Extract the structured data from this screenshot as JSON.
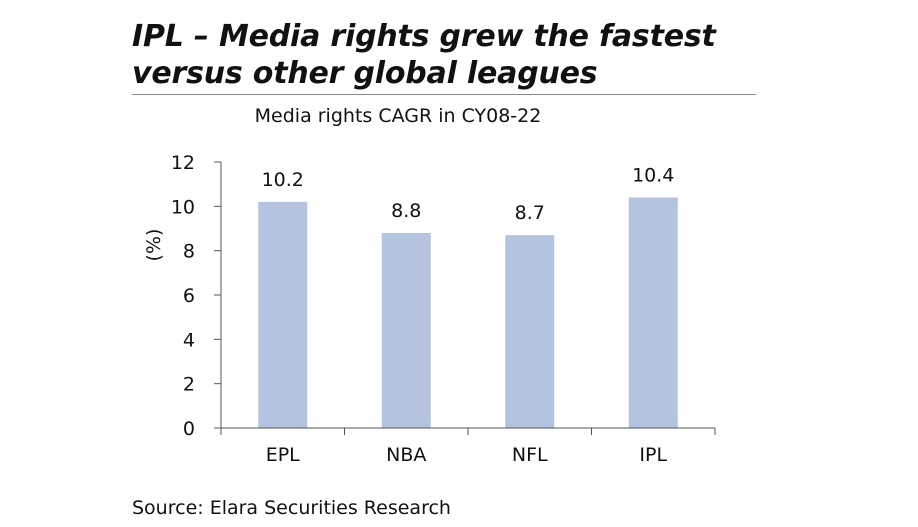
{
  "header": {
    "title": "IPL – Media rights grew the fastest versus other global leagues"
  },
  "footer": {
    "source": "Source: Elara Securities Research"
  },
  "colors": {
    "bar": "#b4c3e0",
    "axis": "#555555"
  },
  "chart_data": {
    "type": "bar",
    "title": "Media rights CAGR in CY08-22",
    "xlabel": "",
    "ylabel": "(%)",
    "categories": [
      "EPL",
      "NBA",
      "NFL",
      "IPL"
    ],
    "values": [
      10.2,
      8.8,
      8.7,
      10.4
    ],
    "data_labels": [
      "10.2",
      "8.8",
      "8.7",
      "10.4"
    ],
    "ylim": [
      0,
      12
    ],
    "yticks": [
      "0",
      "2",
      "4",
      "6",
      "8",
      "10",
      "12"
    ],
    "grid": false,
    "legend": "none"
  }
}
